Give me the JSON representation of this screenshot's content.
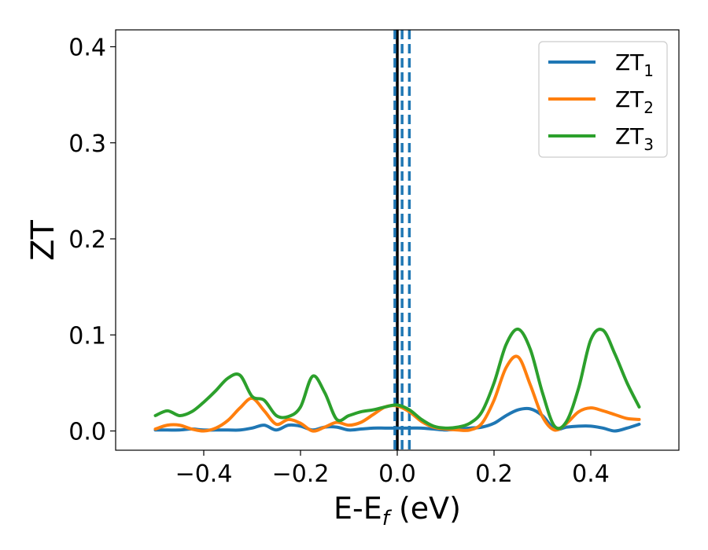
{
  "chart_data": {
    "type": "line",
    "xlabel": "E-E",
    "xlabel_sub": "f",
    "xlabel_unit": " (eV)",
    "ylabel": "ZT",
    "xlim": [
      -0.5,
      0.5
    ],
    "ylim": [
      -0.02,
      0.415
    ],
    "xticks": [
      -0.4,
      -0.2,
      0.0,
      0.2,
      0.4
    ],
    "xtick_labels": [
      "−0.4",
      "−0.2",
      "0.0",
      "0.2",
      "0.4"
    ],
    "yticks": [
      0.0,
      0.1,
      0.2,
      0.3,
      0.4
    ],
    "ytick_labels": [
      "0.0",
      "0.1",
      "0.2",
      "0.3",
      "0.4"
    ],
    "grid": false,
    "legend_position": "top-right",
    "vlines": [
      {
        "x": 0.0,
        "style": "solid",
        "color": "#000000"
      },
      {
        "x": -0.005,
        "style": "dashed",
        "color": "#1f77b4"
      },
      {
        "x": 0.01,
        "style": "dashed",
        "color": "#1f77b4"
      },
      {
        "x": 0.025,
        "style": "dashed",
        "color": "#1f77b4"
      }
    ],
    "x": [
      -0.5,
      -0.475,
      -0.45,
      -0.425,
      -0.4,
      -0.375,
      -0.35,
      -0.325,
      -0.3,
      -0.275,
      -0.25,
      -0.225,
      -0.2,
      -0.175,
      -0.15,
      -0.125,
      -0.1,
      -0.075,
      -0.05,
      -0.025,
      0.0,
      0.025,
      0.05,
      0.075,
      0.1,
      0.125,
      0.15,
      0.175,
      0.2,
      0.225,
      0.25,
      0.275,
      0.3,
      0.325,
      0.35,
      0.375,
      0.4,
      0.425,
      0.45,
      0.475,
      0.5
    ],
    "series": [
      {
        "name": "ZT",
        "name_sub": "1",
        "color": "#1f77b4",
        "values": [
          0.001,
          0.001,
          0.001,
          0.002,
          0.001,
          0.001,
          0.001,
          0.001,
          0.003,
          0.006,
          0.001,
          0.006,
          0.005,
          0.001,
          0.004,
          0.004,
          0.001,
          0.002,
          0.003,
          0.003,
          0.003,
          0.003,
          0.003,
          0.002,
          0.001,
          0.002,
          0.003,
          0.004,
          0.008,
          0.016,
          0.022,
          0.023,
          0.016,
          0.002,
          0.004,
          0.005,
          0.005,
          0.003,
          0.0,
          0.003,
          0.007
        ]
      },
      {
        "name": "ZT",
        "name_sub": "2",
        "color": "#ff7f0e",
        "values": [
          0.002,
          0.006,
          0.006,
          0.002,
          0.0,
          0.003,
          0.011,
          0.024,
          0.034,
          0.021,
          0.007,
          0.012,
          0.008,
          0.0,
          0.004,
          0.009,
          0.006,
          0.009,
          0.017,
          0.025,
          0.026,
          0.02,
          0.01,
          0.004,
          0.002,
          0.001,
          0.001,
          0.008,
          0.032,
          0.066,
          0.077,
          0.048,
          0.015,
          0.001,
          0.008,
          0.02,
          0.024,
          0.021,
          0.017,
          0.013,
          0.012
        ]
      },
      {
        "name": "ZT",
        "name_sub": "3",
        "color": "#2ca02c",
        "values": [
          0.016,
          0.021,
          0.016,
          0.02,
          0.03,
          0.042,
          0.055,
          0.058,
          0.036,
          0.032,
          0.016,
          0.015,
          0.025,
          0.057,
          0.04,
          0.012,
          0.016,
          0.02,
          0.022,
          0.025,
          0.027,
          0.022,
          0.012,
          0.005,
          0.003,
          0.004,
          0.008,
          0.02,
          0.05,
          0.09,
          0.106,
          0.085,
          0.04,
          0.005,
          0.01,
          0.045,
          0.095,
          0.105,
          0.08,
          0.05,
          0.025
        ]
      }
    ]
  }
}
